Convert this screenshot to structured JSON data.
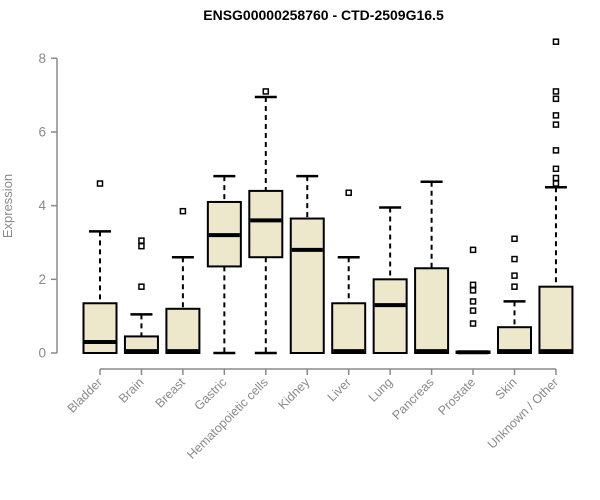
{
  "chart_data": {
    "type": "boxplot",
    "title": "ENSG00000258760 - CTD-2509G16.5",
    "ylabel": "Expression",
    "xlabel": "",
    "ylim": [
      0,
      8.5
    ],
    "yticks": [
      0,
      2,
      4,
      6,
      8
    ],
    "grid": false,
    "legend": "none",
    "categories": [
      "Bladder",
      "Brain",
      "Breast",
      "Gastric",
      "Hematopoietic cells",
      "Kidney",
      "Liver",
      "Lung",
      "Pancreas",
      "Prostate",
      "Skin",
      "Unknown / Other"
    ],
    "boxes": [
      {
        "label": "Bladder",
        "whisker_low": 0,
        "q1": 0,
        "median": 0.3,
        "q3": 1.35,
        "whisker_high": 3.3,
        "outliers": [
          4.6
        ]
      },
      {
        "label": "Brain",
        "whisker_low": 0,
        "q1": 0,
        "median": 0.05,
        "q3": 0.45,
        "whisker_high": 1.05,
        "outliers": [
          1.8,
          2.9,
          3.05
        ]
      },
      {
        "label": "Breast",
        "whisker_low": 0,
        "q1": 0,
        "median": 0.05,
        "q3": 1.2,
        "whisker_high": 2.6,
        "outliers": [
          3.85
        ]
      },
      {
        "label": "Gastric",
        "whisker_low": 0,
        "q1": 2.35,
        "median": 3.2,
        "q3": 4.1,
        "whisker_high": 4.8,
        "outliers": []
      },
      {
        "label": "Hematopoietic cells",
        "whisker_low": 0,
        "q1": 2.6,
        "median": 3.6,
        "q3": 4.4,
        "whisker_high": 6.95,
        "outliers": [
          7.1
        ]
      },
      {
        "label": "Kidney",
        "whisker_low": 0,
        "q1": 0,
        "median": 2.8,
        "q3": 3.65,
        "whisker_high": 4.8,
        "outliers": []
      },
      {
        "label": "Liver",
        "whisker_low": 0,
        "q1": 0,
        "median": 0.05,
        "q3": 1.35,
        "whisker_high": 2.6,
        "outliers": [
          4.35
        ]
      },
      {
        "label": "Lung",
        "whisker_low": 0,
        "q1": 0,
        "median": 1.3,
        "q3": 2.0,
        "whisker_high": 3.95,
        "outliers": []
      },
      {
        "label": "Pancreas",
        "whisker_low": 0,
        "q1": 0,
        "median": 0.05,
        "q3": 2.3,
        "whisker_high": 4.65,
        "outliers": []
      },
      {
        "label": "Prostate",
        "whisker_low": 0,
        "q1": 0,
        "median": 0.02,
        "q3": 0.04,
        "whisker_high": 0.04,
        "outliers": [
          0.8,
          1.15,
          1.4,
          1.7,
          1.85,
          2.8
        ]
      },
      {
        "label": "Skin",
        "whisker_low": 0,
        "q1": 0,
        "median": 0.05,
        "q3": 0.7,
        "whisker_high": 1.4,
        "outliers": [
          1.8,
          2.1,
          2.55,
          3.1
        ]
      },
      {
        "label": "Unknown / Other",
        "whisker_low": 0,
        "q1": 0,
        "median": 0.05,
        "q3": 1.8,
        "whisker_high": 4.5,
        "outliers": [
          4.6,
          4.75,
          5.0,
          5.5,
          6.2,
          6.45,
          6.9,
          7.1,
          8.45
        ]
      }
    ],
    "colors": {
      "background": "#FFFFFF",
      "box_fill": "#EDE7CB",
      "box_border": "#000000",
      "median": "#000000",
      "whisker": "#000000",
      "outlier_fill": "#FFFFFF",
      "axis": "#8A8A8A",
      "tick_label": "#8A8A8A",
      "title": "#000000"
    }
  }
}
